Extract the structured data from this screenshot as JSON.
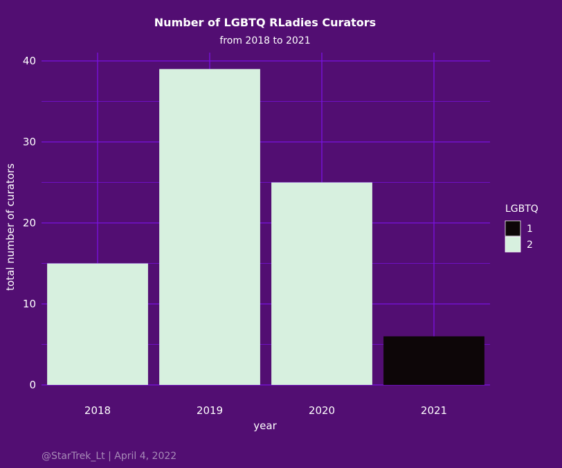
{
  "colors": {
    "background": "#520e72",
    "gridline": "#7a12e0",
    "text": "#ffffff",
    "caption": "#a88bb8"
  },
  "caption": "@StarTrek_Lt | April 4, 2022",
  "chart_data": {
    "type": "bar",
    "title": "Number of LGBTQ RLadies Curators",
    "subtitle": "from 2018 to 2021",
    "xlabel": "year",
    "ylabel": "total number of curators",
    "categories": [
      "2018",
      "2019",
      "2020",
      "2021"
    ],
    "values": [
      15,
      39,
      25,
      6
    ],
    "fill_groups": [
      "2",
      "2",
      "2",
      "1"
    ],
    "ylim": [
      0,
      40
    ],
    "yticks": [
      0,
      10,
      20,
      30,
      40
    ],
    "grid": true,
    "legend": {
      "title": "LGBTQ",
      "position": "right",
      "entries": [
        {
          "label": "1",
          "color": "#0d0608"
        },
        {
          "label": "2",
          "color": "#d7f0df"
        }
      ]
    }
  }
}
